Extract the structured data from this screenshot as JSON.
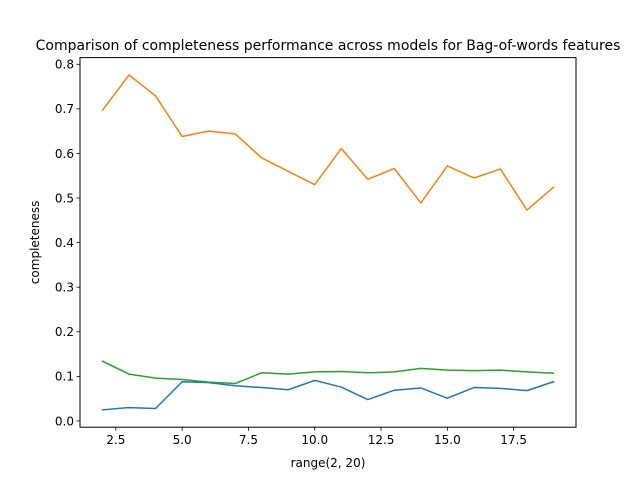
{
  "chart_data": {
    "type": "line",
    "title": "Comparison of completeness performance across models for Bag-of-words features",
    "xlabel": "range(2, 20)",
    "ylabel": "completeness",
    "xlim": [
      1.15,
      19.85
    ],
    "ylim": [
      -0.014,
      0.815
    ],
    "xticks": [
      2.5,
      5.0,
      7.5,
      10.0,
      12.5,
      15.0,
      17.5
    ],
    "xtick_labels": [
      "2.5",
      "5.0",
      "7.5",
      "10.0",
      "12.5",
      "15.0",
      "17.5"
    ],
    "yticks": [
      0.0,
      0.1,
      0.2,
      0.3,
      0.4,
      0.5,
      0.6,
      0.7,
      0.8
    ],
    "ytick_labels": [
      "0.0",
      "0.1",
      "0.2",
      "0.3",
      "0.4",
      "0.5",
      "0.6",
      "0.7",
      "0.8"
    ],
    "grid": false,
    "x": [
      2,
      3,
      4,
      5,
      6,
      7,
      8,
      9,
      10,
      11,
      12,
      13,
      14,
      15,
      16,
      17,
      18,
      19
    ],
    "series": [
      {
        "color": "#1f77b4",
        "values": [
          0.025,
          0.03,
          0.028,
          0.088,
          0.086,
          0.079,
          0.075,
          0.07,
          0.091,
          0.076,
          0.048,
          0.069,
          0.074,
          0.051,
          0.075,
          0.073,
          0.068,
          0.088
        ]
      },
      {
        "color": "#ff7f0e",
        "values": [
          0.697,
          0.776,
          0.729,
          0.638,
          0.65,
          0.644,
          0.59,
          0.56,
          0.53,
          0.611,
          0.542,
          0.566,
          0.489,
          0.572,
          0.545,
          0.565,
          0.473,
          0.524
        ]
      },
      {
        "color": "#2ca02c",
        "values": [
          0.134,
          0.105,
          0.096,
          0.093,
          0.087,
          0.084,
          0.108,
          0.105,
          0.11,
          0.111,
          0.108,
          0.11,
          0.118,
          0.114,
          0.113,
          0.114,
          0.11,
          0.107
        ]
      }
    ]
  }
}
